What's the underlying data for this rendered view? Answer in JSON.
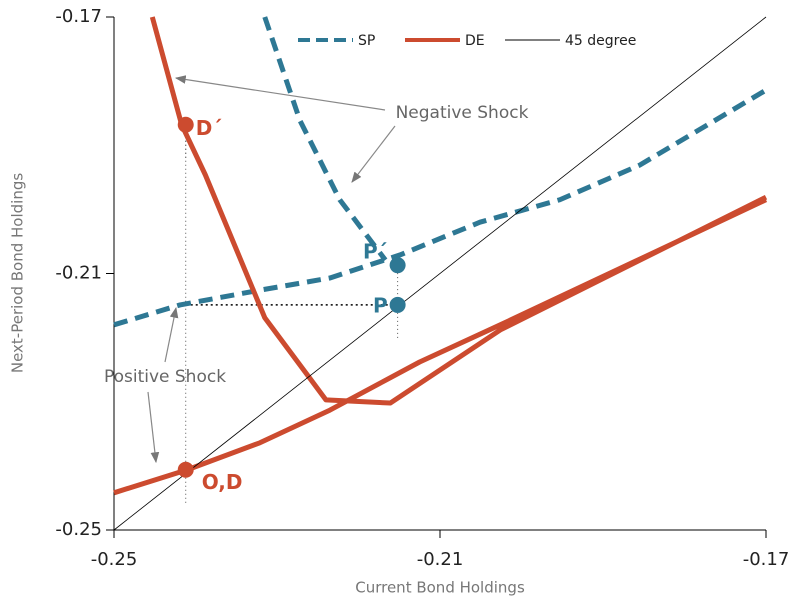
{
  "chart_data": {
    "type": "line",
    "xlabel": "Current Bond Holdings",
    "ylabel": "Next-Period Bond Holdings",
    "xlim": [
      -0.25,
      -0.17
    ],
    "ylim": [
      -0.25,
      -0.17
    ],
    "xticks": [
      -0.25,
      -0.21,
      -0.17
    ],
    "yticks": [
      -0.25,
      -0.21,
      -0.17
    ],
    "series": [
      {
        "name": "SP",
        "color": "#2e7894",
        "dashed": true,
        "x": [
          -0.25,
          -0.2419,
          -0.2321,
          -0.2235,
          -0.2149,
          -0.2051,
          -0.1953,
          -0.1855,
          -0.17,
          null,
          -0.2315,
          -0.2272,
          -0.2223,
          -0.2167
        ],
        "values": [
          -0.218,
          -0.2149,
          -0.2126,
          -0.2107,
          -0.2071,
          -0.202,
          -0.1985,
          -0.1931,
          -0.1814,
          null,
          -0.17,
          -0.1861,
          -0.1985,
          -0.2079
        ]
      },
      {
        "name": "DE",
        "color": "#cc4b2f",
        "dashed": false,
        "x": [
          -0.2453,
          -0.2417,
          -0.2388,
          -0.2315,
          -0.224,
          -0.2161,
          -0.2026,
          -0.17,
          null,
          -0.25,
          -0.241,
          -0.2321,
          -0.2235,
          -0.2125,
          -0.2026,
          -0.17
        ],
        "values": [
          -0.17,
          -0.1868,
          -0.1946,
          -0.2169,
          -0.2297,
          -0.2302,
          -0.2188,
          -0.1981,
          null,
          -0.2442,
          -0.2406,
          -0.2364,
          -0.2313,
          -0.2238,
          -0.218,
          -0.1985
        ]
      },
      {
        "name": "45 degree",
        "color": "#000000",
        "dashed": false,
        "x": [
          -0.25,
          -0.17
        ],
        "values": [
          -0.25,
          -0.17
        ]
      }
    ],
    "points": [
      {
        "label": "D´",
        "x": -0.2412,
        "y": -0.1868,
        "color": "#cc4b2f"
      },
      {
        "label": "O,D",
        "x": -0.2412,
        "y": -0.2406,
        "color": "#cc4b2f"
      },
      {
        "label": "P´",
        "x": -0.2152,
        "y": -0.2087,
        "color": "#2e7894"
      },
      {
        "label": "P",
        "x": -0.2152,
        "y": -0.2149,
        "color": "#2e7894"
      }
    ],
    "annotations": [
      "Negative Shock",
      "Positive Shock"
    ]
  }
}
